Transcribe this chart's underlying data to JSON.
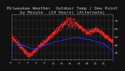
{
  "title": "Milwaukee Weather  Outdoor Temp / Dew Point",
  "subtitle": "by Minute  (24 Hours) (Alternate)",
  "bg_color": "#111111",
  "plot_bg_color": "#111111",
  "grid_color": "#555555",
  "temp_color": "#ff2222",
  "dew_color": "#2222ff",
  "text_color": "#cccccc",
  "ylim": [
    22,
    78
  ],
  "yticks": [
    30,
    40,
    50,
    60,
    70
  ],
  "ytick_labels": [
    "30",
    "40",
    "50",
    "60",
    "70"
  ],
  "title_fontsize": 4.5,
  "tick_fontsize": 3.2,
  "marker_size": 0.5,
  "seed": 17
}
